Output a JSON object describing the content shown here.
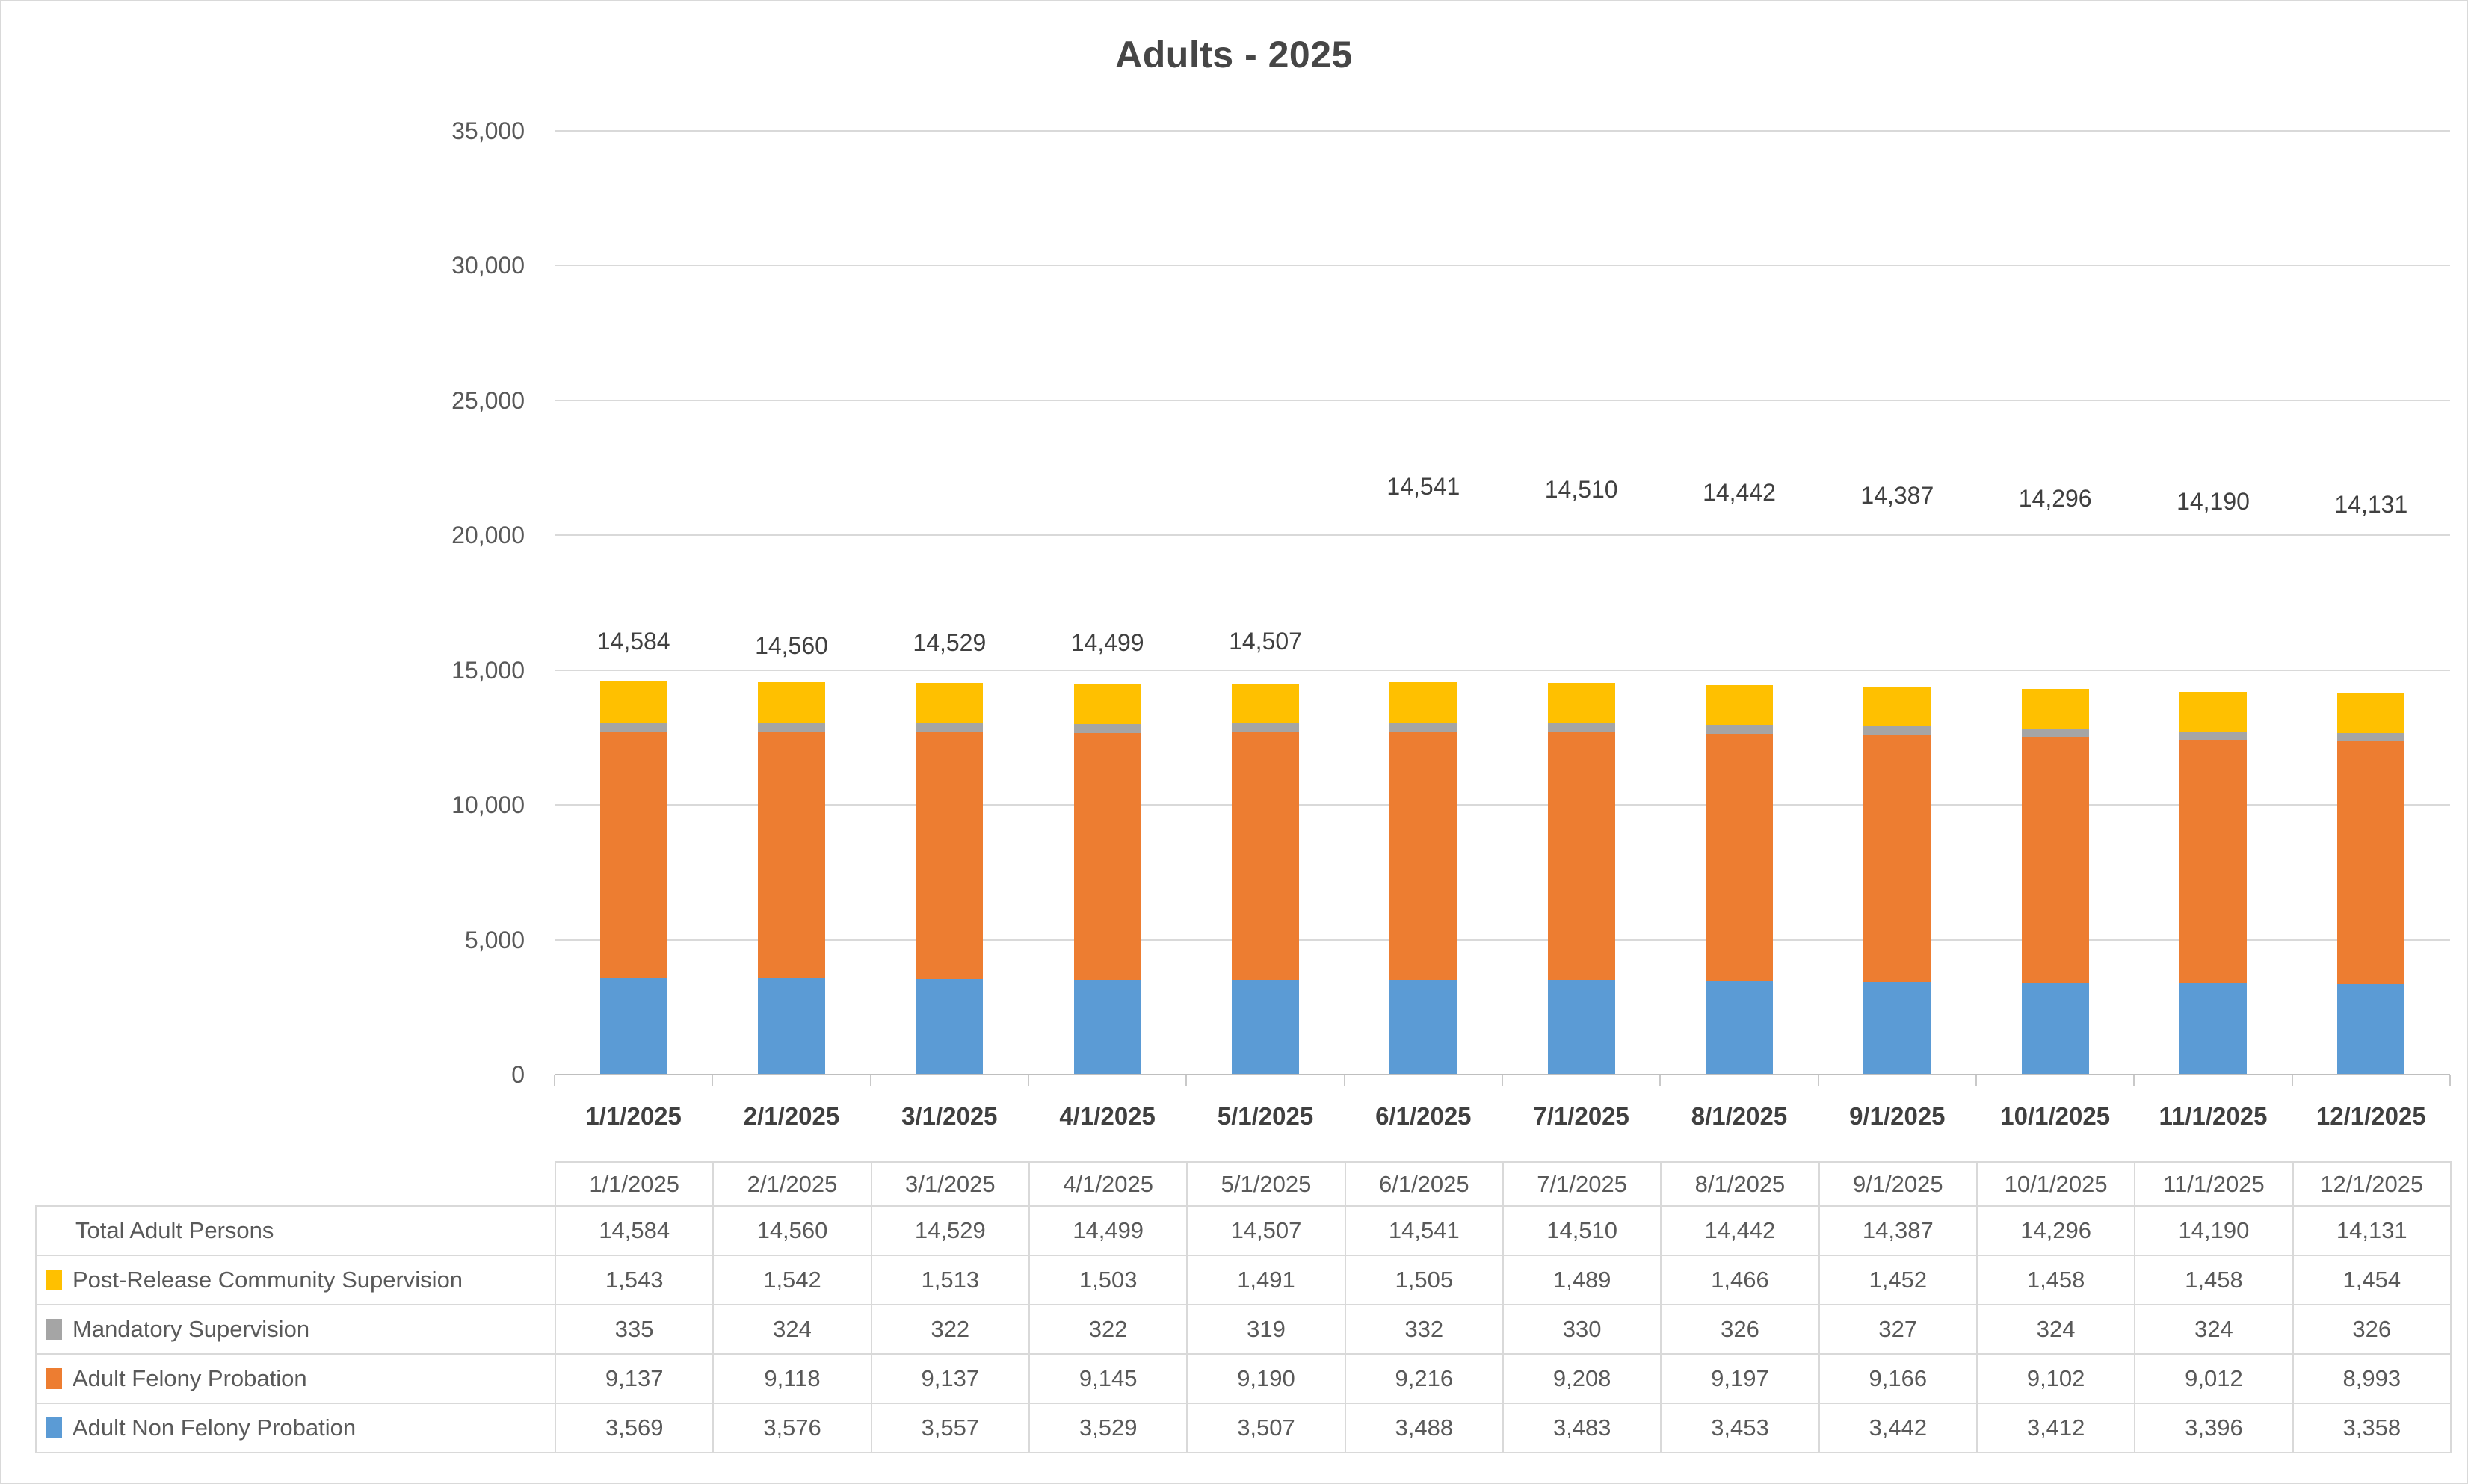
{
  "chart_data": {
    "type": "bar",
    "stacked": true,
    "title": "Adults - 2025",
    "categories": [
      "1/1/2025",
      "2/1/2025",
      "3/1/2025",
      "4/1/2025",
      "5/1/2025",
      "6/1/2025",
      "7/1/2025",
      "8/1/2025",
      "9/1/2025",
      "10/1/2025",
      "11/1/2025",
      "12/1/2025"
    ],
    "series": [
      {
        "name": "Adult Non Felony Probation",
        "color": "#5B9BD5",
        "values": [
          3569,
          3576,
          3557,
          3529,
          3507,
          3488,
          3483,
          3453,
          3442,
          3412,
          3396,
          3358
        ]
      },
      {
        "name": "Adult Felony Probation",
        "color": "#ED7D31",
        "values": [
          9137,
          9118,
          9137,
          9145,
          9190,
          9216,
          9208,
          9197,
          9166,
          9102,
          9012,
          8993
        ]
      },
      {
        "name": "Mandatory Supervision",
        "color": "#A5A5A5",
        "values": [
          335,
          324,
          322,
          322,
          319,
          332,
          330,
          326,
          327,
          324,
          324,
          326
        ]
      },
      {
        "name": "Post-Release Community Supervision",
        "color": "#FFC000",
        "values": [
          1543,
          1542,
          1513,
          1503,
          1491,
          1505,
          1489,
          1466,
          1452,
          1458,
          1458,
          1454
        ]
      }
    ],
    "totals": {
      "name": "Total Adult Persons",
      "values": [
        14584,
        14560,
        14529,
        14499,
        14507,
        14541,
        14510,
        14442,
        14387,
        14296,
        14190,
        14131
      ],
      "labels": [
        "14,584",
        "14,560",
        "14,529",
        "14,499",
        "14,507",
        "14,541",
        "14,510",
        "14,442",
        "14,387",
        "14,296",
        "14,190",
        "14,131"
      ]
    },
    "y_axis": {
      "min": 0,
      "max": 35000,
      "step": 5000,
      "tick_labels": [
        "0",
        "5,000",
        "10,000",
        "15,000",
        "20,000",
        "25,000",
        "30,000",
        "35,000"
      ]
    },
    "grid": true,
    "legend_position": "data-table",
    "data_table": {
      "header": [
        "",
        "1/1/2025",
        "2/1/2025",
        "3/1/2025",
        "4/1/2025",
        "5/1/2025",
        "6/1/2025",
        "7/1/2025",
        "8/1/2025",
        "9/1/2025",
        "10/1/2025",
        "11/1/2025",
        "12/1/2025"
      ],
      "rows": [
        {
          "label": "Total Adult Persons",
          "key_color": null,
          "values": [
            "14,584",
            "14,560",
            "14,529",
            "14,499",
            "14,507",
            "14,541",
            "14,510",
            "14,442",
            "14,387",
            "14,296",
            "14,190",
            "14,131"
          ]
        },
        {
          "label": "Post-Release Community Supervision",
          "key_color": "#FFC000",
          "values": [
            "1,543",
            "1,542",
            "1,513",
            "1,503",
            "1,491",
            "1,505",
            "1,489",
            "1,466",
            "1,452",
            "1,458",
            "1,458",
            "1,454"
          ]
        },
        {
          "label": "Mandatory Supervision",
          "key_color": "#A5A5A5",
          "values": [
            "335",
            "324",
            "322",
            "322",
            "319",
            "332",
            "330",
            "326",
            "327",
            "324",
            "324",
            "326"
          ]
        },
        {
          "label": "Adult Felony Probation",
          "key_color": "#ED7D31",
          "values": [
            "9,137",
            "9,118",
            "9,137",
            "9,145",
            "9,190",
            "9,216",
            "9,208",
            "9,197",
            "9,166",
            "9,102",
            "9,012",
            "8,993"
          ]
        },
        {
          "label": "Adult Non Felony Probation",
          "key_color": "#5B9BD5",
          "values": [
            "3,569",
            "3,576",
            "3,557",
            "3,529",
            "3,507",
            "3,488",
            "3,483",
            "3,453",
            "3,442",
            "3,412",
            "3,396",
            "3,358"
          ]
        }
      ]
    }
  }
}
